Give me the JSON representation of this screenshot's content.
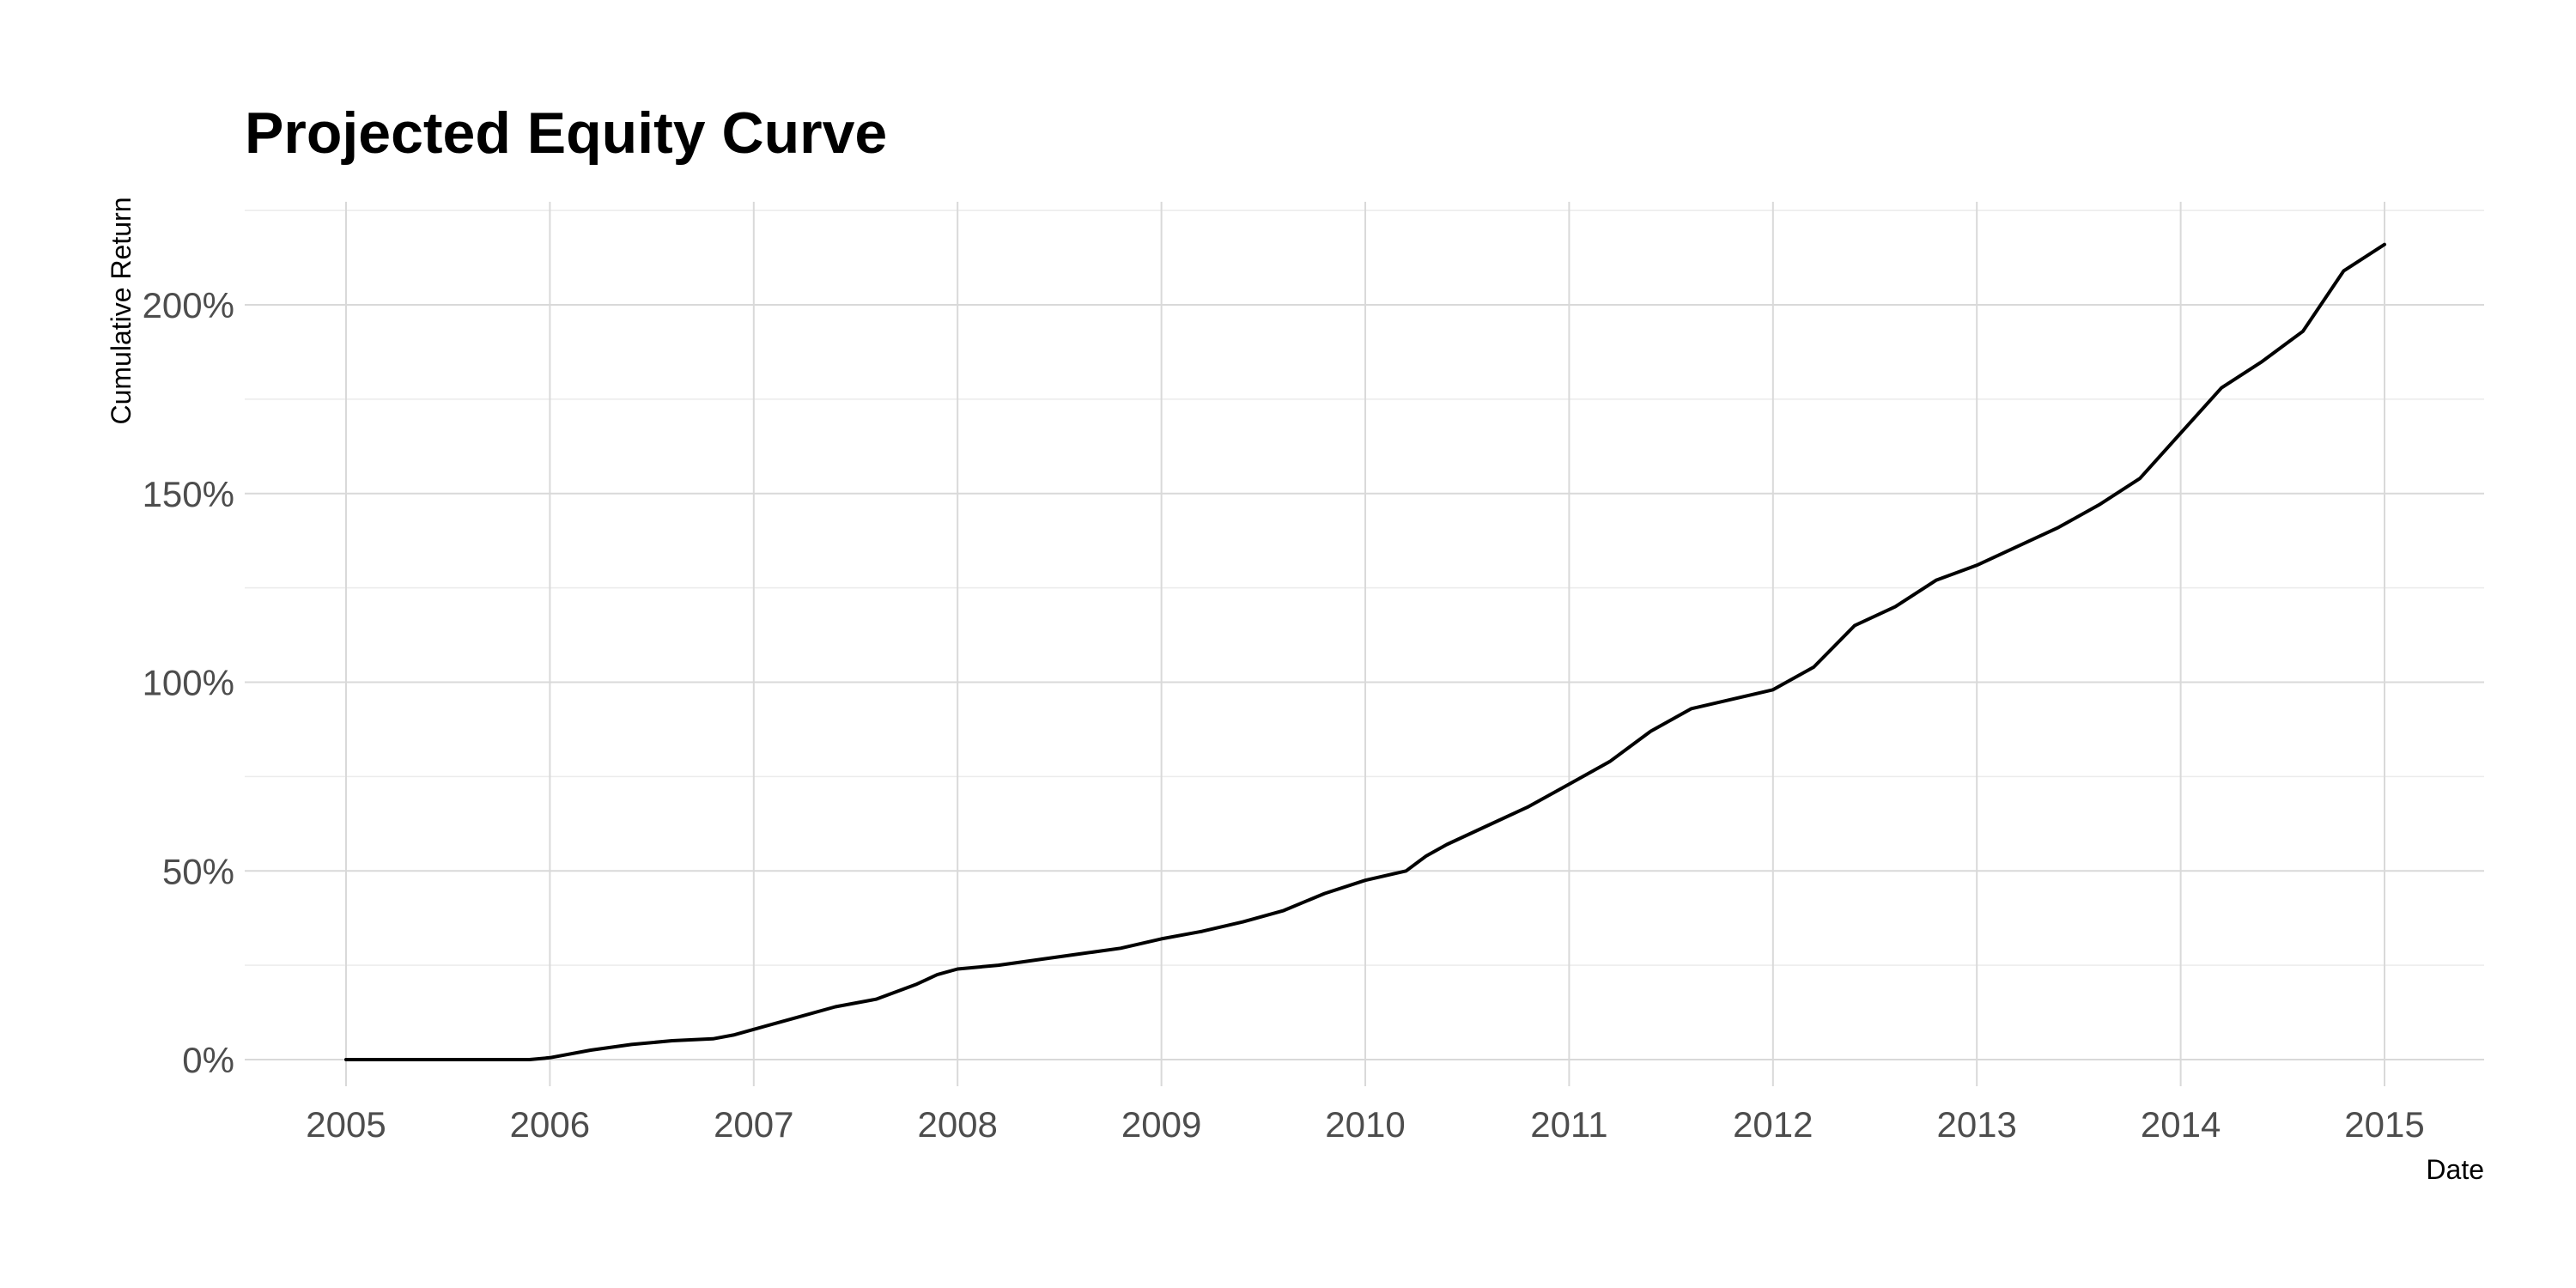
{
  "chart_data": {
    "type": "line",
    "title": "Projected Equity Curve",
    "xlabel": "Date",
    "ylabel": "Cumulative Return",
    "x_ticks": [
      "2005",
      "2006",
      "2007",
      "2008",
      "2009",
      "2010",
      "2011",
      "2012",
      "2013",
      "2014",
      "2015"
    ],
    "y_ticks": [
      "0%",
      "50%",
      "100%",
      "150%",
      "200%"
    ],
    "y_tick_values": [
      0,
      50,
      100,
      150,
      200
    ],
    "xlim": [
      2004.5,
      2015.5
    ],
    "ylim": [
      -10,
      225
    ],
    "grid": true,
    "legend": "none",
    "line_color": "#000000",
    "series": [
      {
        "x": [
          2005.0,
          2005.5,
          2005.9,
          2006.0,
          2006.2,
          2006.4,
          2006.6,
          2006.8,
          2006.9,
          2007.0,
          2007.2,
          2007.4,
          2007.6,
          2007.8,
          2007.9,
          2008.0,
          2008.2,
          2008.4,
          2008.6,
          2008.8,
          2009.0,
          2009.2,
          2009.4,
          2009.6,
          2009.8,
          2010.0,
          2010.2,
          2010.3,
          2010.4,
          2010.6,
          2010.8,
          2011.0,
          2011.2,
          2011.4,
          2011.6,
          2011.8,
          2012.0,
          2012.2,
          2012.4,
          2012.6,
          2012.8,
          2013.0,
          2013.2,
          2013.4,
          2013.6,
          2013.8,
          2014.0,
          2014.2,
          2014.4,
          2014.6,
          2014.8,
          2015.0
        ],
        "y": [
          0,
          0,
          0,
          0.5,
          2.5,
          4,
          5,
          5.5,
          6.5,
          8,
          11,
          14,
          16,
          20,
          22.5,
          24,
          25,
          26.5,
          28,
          29.5,
          32,
          34,
          36.5,
          39.5,
          44,
          47.5,
          50,
          54,
          57,
          62,
          67,
          73,
          79,
          87,
          93,
          95.5,
          98,
          104,
          115,
          120,
          127,
          131,
          136,
          141,
          147,
          154,
          166,
          178,
          185,
          193,
          209,
          216
        ]
      }
    ]
  }
}
